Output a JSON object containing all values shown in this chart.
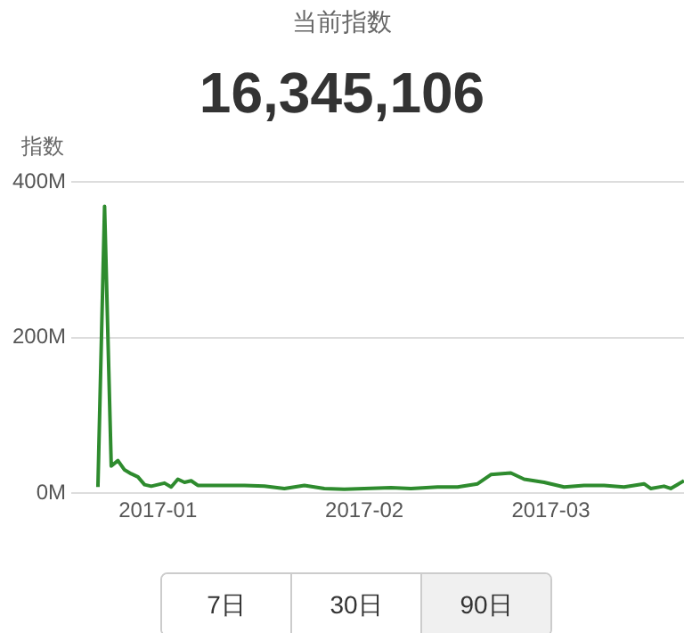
{
  "chart_data": {
    "type": "line",
    "title": "当前指数",
    "subtitle": "16,345,106",
    "ylabel": "指数",
    "annotations": [
      "7日",
      "30日",
      "90日"
    ],
    "x": [
      "2016-12-23",
      "2016-12-24",
      "2016-12-25",
      "2016-12-26",
      "2016-12-27",
      "2016-12-28",
      "2016-12-29",
      "2016-12-30",
      "2016-12-31",
      "2017-01-01",
      "2017-01-02",
      "2017-01-03",
      "2017-01-04",
      "2017-01-05",
      "2017-01-06",
      "2017-01-07",
      "2017-01-10",
      "2017-01-14",
      "2017-01-17",
      "2017-01-20",
      "2017-01-23",
      "2017-01-26",
      "2017-01-29",
      "2017-02-01",
      "2017-02-05",
      "2017-02-08",
      "2017-02-12",
      "2017-02-15",
      "2017-02-18",
      "2017-02-20",
      "2017-02-23",
      "2017-02-25",
      "2017-02-28",
      "2017-03-03",
      "2017-03-06",
      "2017-03-09",
      "2017-03-12",
      "2017-03-15",
      "2017-03-16",
      "2017-03-18",
      "2017-03-19",
      "2017-03-21"
    ],
    "series": [
      {
        "color": "#2e8b2e",
        "values": [
          8,
          369,
          35,
          42,
          30,
          25,
          21,
          11,
          9,
          11,
          13,
          8,
          18,
          14,
          16,
          10,
          10,
          10,
          9,
          6,
          10,
          6,
          5,
          6,
          7,
          6,
          8,
          8,
          12,
          24,
          26,
          18,
          14,
          8,
          10,
          10,
          8,
          12,
          6,
          9,
          6,
          16
        ]
      }
    ],
    "xlim": [
      "2016-12-19",
      "2017-03-21"
    ],
    "xticks": [
      {
        "value": "2017-01-01",
        "label": "2017-01"
      },
      {
        "value": "2017-02-01",
        "label": "2017-02"
      },
      {
        "value": "2017-03-01",
        "label": "2017-03"
      }
    ],
    "ylim": [
      0,
      400
    ],
    "yticks": [
      {
        "value": 0,
        "label": "0M"
      },
      {
        "value": 200,
        "label": "200M"
      },
      {
        "value": 400,
        "label": "400M"
      }
    ],
    "grid": "y",
    "legend": false,
    "marker": "none",
    "line_style": "solid"
  }
}
